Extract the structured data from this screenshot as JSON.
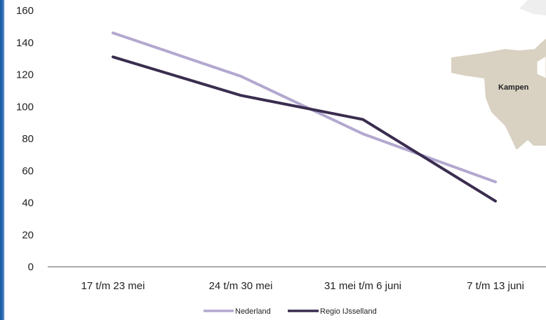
{
  "chart_data": {
    "type": "line",
    "categories": [
      "17 t/m 23 mei",
      "24 t/m 30 mei",
      "31 mei t/m 6 juni",
      "7 t/m 13 juni"
    ],
    "series": [
      {
        "name": "Nederland",
        "values": [
          146,
          119,
          83,
          53
        ],
        "color": "#b3a8cf"
      },
      {
        "name": "Regio IJsselland",
        "values": [
          131,
          107,
          92,
          41
        ],
        "color": "#3a2d4f"
      }
    ],
    "ylim": [
      0,
      160
    ],
    "yticks": [
      0,
      20,
      40,
      60,
      80,
      100,
      120,
      140,
      160
    ],
    "grid": false,
    "legend": "bottom"
  },
  "map": {
    "label": "Kampen",
    "fill_color": "#d9d1c2"
  }
}
